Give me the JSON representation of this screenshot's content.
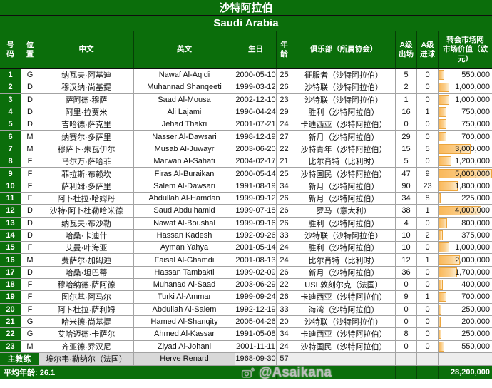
{
  "titles": {
    "cn": "沙特阿拉伯",
    "en": "Saudi Arabia"
  },
  "columns": [
    {
      "key": "no",
      "label": "号\n码"
    },
    {
      "key": "pos",
      "label": "位\n置"
    },
    {
      "key": "cn",
      "label": "中文"
    },
    {
      "key": "en",
      "label": "英文"
    },
    {
      "key": "birth",
      "label": "生日"
    },
    {
      "key": "age",
      "label": "年\n龄"
    },
    {
      "key": "club",
      "label": "俱乐部（所属协会）"
    },
    {
      "key": "caps",
      "label": "A级\n出场"
    },
    {
      "key": "goals",
      "label": "A级\n进球"
    },
    {
      "key": "value",
      "label": "转会市场网\n市场价值（欧\n元）"
    }
  ],
  "players": [
    {
      "no": "1",
      "pos": "G",
      "cn": "纳瓦夫·阿基迪",
      "en": "Nawaf Al-Aqidi",
      "birth": "2000-05-10",
      "age": "25",
      "club": "征服者（沙特阿拉伯）",
      "caps": "5",
      "goals": "0",
      "value": "550,000"
    },
    {
      "no": "2",
      "pos": "D",
      "cn": "穆汉纳·尚基提",
      "en": "Muhannad Shanqeeti",
      "birth": "1999-03-12",
      "age": "26",
      "club": "沙特联（沙特阿拉伯）",
      "caps": "2",
      "goals": "0",
      "value": "1,000,000"
    },
    {
      "no": "3",
      "pos": "D",
      "cn": "萨阿德·穆萨",
      "en": "Saad Al-Mousa",
      "birth": "2002-12-10",
      "age": "23",
      "club": "沙特联（沙特阿拉伯）",
      "caps": "1",
      "goals": "0",
      "value": "1,000,000"
    },
    {
      "no": "4",
      "pos": "D",
      "cn": "阿里·拉贾米",
      "en": "Ali Lajami",
      "birth": "1996-04-24",
      "age": "29",
      "club": "胜利（沙特阿拉伯）",
      "caps": "16",
      "goals": "1",
      "value": "750,000"
    },
    {
      "no": "5",
      "pos": "D",
      "cn": "吉哈德·萨克里",
      "en": "Jehad Thakri",
      "birth": "2001-07-21",
      "age": "24",
      "club": "卡迪西亚（沙特阿拉伯）",
      "caps": "0",
      "goals": "0",
      "value": "750,000"
    },
    {
      "no": "6",
      "pos": "M",
      "cn": "纳赛尔·多萨里",
      "en": "Nasser Al-Dawsari",
      "birth": "1998-12-19",
      "age": "27",
      "club": "新月（沙特阿拉伯）",
      "caps": "29",
      "goals": "0",
      "value": "700,000"
    },
    {
      "no": "7",
      "pos": "M",
      "cn": "穆萨卜·朱瓦伊尔",
      "en": "Musab Al-Juwayr",
      "birth": "2003-06-20",
      "age": "22",
      "club": "沙特青年（沙特阿拉伯）",
      "caps": "15",
      "goals": "5",
      "value": "3,000,000"
    },
    {
      "no": "8",
      "pos": "F",
      "cn": "马尔万·萨哈菲",
      "en": "Marwan Al-Sahafi",
      "birth": "2004-02-17",
      "age": "21",
      "club": "比尔肖特（比利时）",
      "caps": "5",
      "goals": "0",
      "value": "1,200,000"
    },
    {
      "no": "9",
      "pos": "F",
      "cn": "菲拉斯·布赖坎",
      "en": "Firas Al-Buraikan",
      "birth": "2000-05-14",
      "age": "25",
      "club": "沙特国民（沙特阿拉伯）",
      "caps": "47",
      "goals": "9",
      "value": "5,000,000"
    },
    {
      "no": "10",
      "pos": "F",
      "cn": "萨利姆·多萨里",
      "en": "Salem Al-Dawsari",
      "birth": "1991-08-19",
      "age": "34",
      "club": "新月（沙特阿拉伯）",
      "caps": "90",
      "goals": "23",
      "value": "1,800,000"
    },
    {
      "no": "11",
      "pos": "F",
      "cn": "阿卜杜拉·哈姆丹",
      "en": "Abdullah Al-Hamdan",
      "birth": "1999-09-12",
      "age": "26",
      "club": "新月（沙特阿拉伯）",
      "caps": "34",
      "goals": "8",
      "value": "225,000"
    },
    {
      "no": "12",
      "pos": "D",
      "cn": "沙特·阿卜杜勒哈米德",
      "en": "Saud Abdulhamid",
      "birth": "1999-07-18",
      "age": "26",
      "club": "罗马（意大利）",
      "caps": "38",
      "goals": "1",
      "value": "4,000,000"
    },
    {
      "no": "13",
      "pos": "D",
      "cn": "纳瓦夫·布沙勒",
      "en": "Nawaf Al-Boushal",
      "birth": "1999-09-16",
      "age": "26",
      "club": "胜利（沙特阿拉伯）",
      "caps": "4",
      "goals": "0",
      "value": "800,000"
    },
    {
      "no": "14",
      "pos": "D",
      "cn": "哈桑·卡迪什",
      "en": "Hassan Kadesh",
      "birth": "1992-09-26",
      "age": "33",
      "club": "沙特联（沙特阿拉伯）",
      "caps": "10",
      "goals": "2",
      "value": "375,000"
    },
    {
      "no": "15",
      "pos": "F",
      "cn": "艾曼·叶海亚",
      "en": "Ayman Yahya",
      "birth": "2001-05-14",
      "age": "24",
      "club": "胜利（沙特阿拉伯）",
      "caps": "10",
      "goals": "0",
      "value": "1,000,000"
    },
    {
      "no": "16",
      "pos": "M",
      "cn": "费萨尔·加姆迪",
      "en": "Faisal Al-Ghamdi",
      "birth": "2001-08-13",
      "age": "24",
      "club": "比尔肖特（比利时）",
      "caps": "12",
      "goals": "1",
      "value": "2,000,000"
    },
    {
      "no": "17",
      "pos": "D",
      "cn": "哈桑·坦巴蒂",
      "en": "Hassan Tambakti",
      "birth": "1999-02-09",
      "age": "26",
      "club": "新月（沙特阿拉伯）",
      "caps": "36",
      "goals": "0",
      "value": "1,700,000"
    },
    {
      "no": "18",
      "pos": "F",
      "cn": "穆哈纳德·萨阿德",
      "en": "Muhanad Al-Saad",
      "birth": "2003-06-29",
      "age": "22",
      "club": "USL敦刻尔克（法国）",
      "caps": "0",
      "goals": "0",
      "value": "400,000"
    },
    {
      "no": "19",
      "pos": "F",
      "cn": "图尔基·阿马尔",
      "en": "Turki Al-Ammar",
      "birth": "1999-09-24",
      "age": "26",
      "club": "卡迪西亚（沙特阿拉伯）",
      "caps": "9",
      "goals": "1",
      "value": "700,000"
    },
    {
      "no": "20",
      "pos": "F",
      "cn": "阿卜杜拉·萨利姆",
      "en": "Abdullah Al-Salem",
      "birth": "1992-12-19",
      "age": "33",
      "club": "海湾（沙特阿拉伯）",
      "caps": "0",
      "goals": "0",
      "value": "250,000"
    },
    {
      "no": "21",
      "pos": "G",
      "cn": "哈米德·尚基提",
      "en": "Hamed Al-Shanqity",
      "birth": "2005-04-26",
      "age": "20",
      "club": "沙特联（沙特阿拉伯）",
      "caps": "0",
      "goals": "0",
      "value": "200,000"
    },
    {
      "no": "22",
      "pos": "G",
      "cn": "艾哈迈德·卡萨尔",
      "en": "Ahmed Al-Kassar",
      "birth": "1991-05-08",
      "age": "34",
      "club": "卡迪西亚（沙特阿拉伯）",
      "caps": "8",
      "goals": "0",
      "value": "250,000"
    },
    {
      "no": "23",
      "pos": "M",
      "cn": "齐亚德·乔汉尼",
      "en": "Ziyad Al-Johani",
      "birth": "2001-11-11",
      "age": "24",
      "club": "沙特国民（沙特阿拉伯）",
      "caps": "0",
      "goals": "0",
      "value": "550,000"
    }
  ],
  "coach": {
    "label": "主教练",
    "cn": "埃尔韦·勒纳尔（法国）",
    "en": "Herve Renard",
    "birth": "1968-09-30",
    "age": "57",
    "club": "",
    "caps": "",
    "goals": "",
    "value": ""
  },
  "footer": {
    "avg_label": "平均年龄:  26.1",
    "total_value": "28,200,000"
  },
  "watermark": {
    "handle": "@Asaikana"
  },
  "value_bar_max": 5000000,
  "colors": {
    "header_green": "#0b6e0b",
    "bar_fill": "#f9b85a",
    "bar_border": "#eca53c",
    "total_text": "#ffff00"
  }
}
